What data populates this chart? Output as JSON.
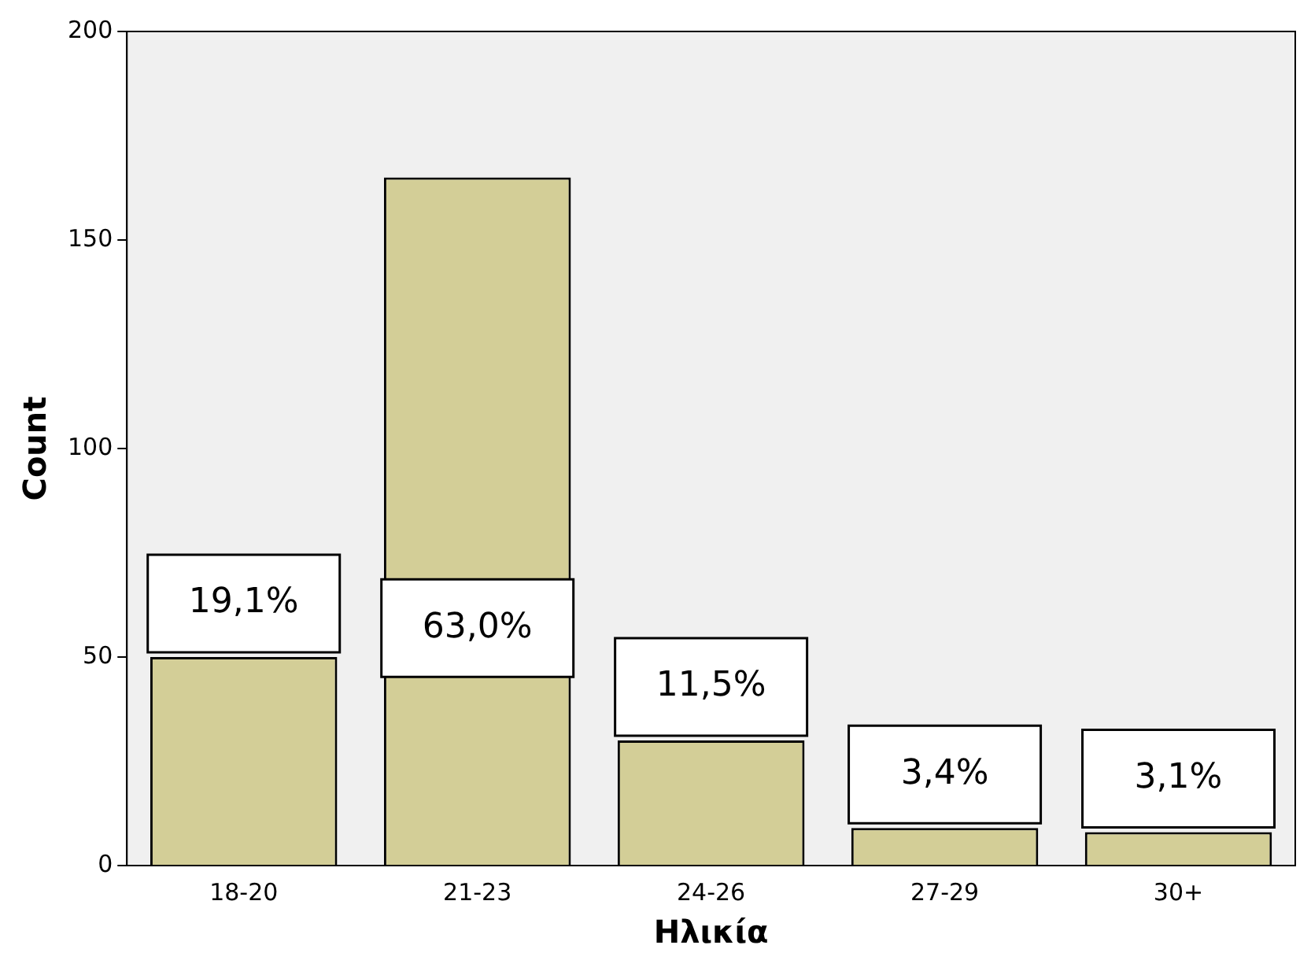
{
  "chart_data": {
    "type": "bar",
    "xlabel": "Ηλικία",
    "ylabel": "Count",
    "categories": [
      "18-20",
      "21-23",
      "24-26",
      "27-29",
      "30+"
    ],
    "values": [
      50,
      165,
      30,
      9,
      8
    ],
    "annotations": [
      {
        "text": "19,1%",
        "x": "18-20",
        "y": 50
      },
      "63,0%",
      {
        "text": "11,5%",
        "x": "24-26",
        "y": 30
      },
      {
        "text": "3,4%",
        "x": "27-29",
        "y": 9
      },
      {
        "text": "3,1%",
        "x": "30+",
        "y": 8
      }
    ],
    "color": "#d3ce97",
    "ylim": [
      0,
      200
    ],
    "yticks": [
      0,
      50,
      100,
      150,
      200
    ],
    "grid": false,
    "legend": false
  }
}
